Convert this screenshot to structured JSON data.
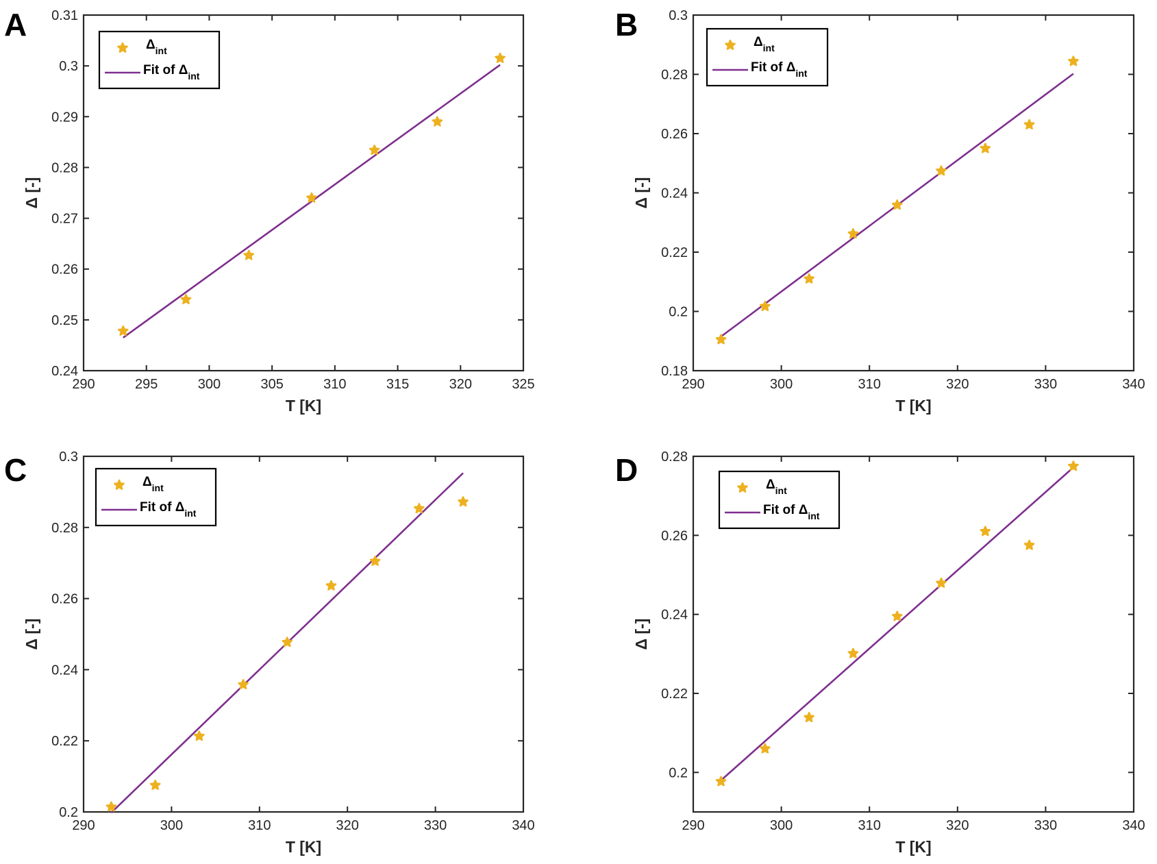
{
  "chart_data": [
    {
      "panel": "A",
      "type": "scatter",
      "xlabel": "T  [K]",
      "ylabel": "Δ [-]",
      "xlim": [
        290,
        325
      ],
      "ylim": [
        0.24,
        0.31
      ],
      "xticks": [
        290,
        295,
        300,
        305,
        310,
        315,
        320,
        325
      ],
      "yticks": [
        0.24,
        0.25,
        0.26,
        0.27,
        0.28,
        0.29,
        0.3,
        0.31
      ],
      "xtick_labels": [
        "290",
        "295",
        "300",
        "305",
        "310",
        "315",
        "320",
        "325"
      ],
      "ytick_labels": [
        "0.24",
        "0.25",
        "0.26",
        "0.27",
        "0.28",
        "0.29",
        "0.3",
        "0.31"
      ],
      "legend_position": "top-left",
      "series": [
        {
          "name": "Δint",
          "kind": "scatter",
          "color": "#EDB120",
          "x": [
            293.15,
            298.15,
            303.15,
            308.15,
            313.15,
            318.15,
            323.15
          ],
          "y": [
            0.2478,
            0.254,
            0.2627,
            0.274,
            0.2834,
            0.289,
            0.3015
          ]
        },
        {
          "name": "Fit of Δint",
          "kind": "line",
          "color": "#7E2F8E",
          "x": [
            293.15,
            323.15
          ],
          "y": [
            0.2465,
            0.3002
          ]
        }
      ]
    },
    {
      "panel": "B",
      "type": "scatter",
      "xlabel": "T  [K]",
      "ylabel": "Δ [-]",
      "xlim": [
        290,
        340
      ],
      "ylim": [
        0.18,
        0.3
      ],
      "xticks": [
        290,
        300,
        310,
        320,
        330,
        340
      ],
      "yticks": [
        0.18,
        0.2,
        0.22,
        0.24,
        0.26,
        0.28,
        0.3
      ],
      "xtick_labels": [
        "290",
        "300",
        "310",
        "320",
        "330",
        "340"
      ],
      "ytick_labels": [
        "0.18",
        "0.2",
        "0.22",
        "0.24",
        "0.26",
        "0.28",
        "0.3"
      ],
      "legend_position": "top-left",
      "series": [
        {
          "name": "Δint",
          "kind": "scatter",
          "color": "#EDB120",
          "x": [
            293.15,
            298.15,
            303.15,
            308.15,
            313.15,
            318.15,
            323.15,
            328.15,
            333.15
          ],
          "y": [
            0.1905,
            0.2017,
            0.211,
            0.2262,
            0.2359,
            0.2474,
            0.255,
            0.263,
            0.2844
          ]
        },
        {
          "name": "Fit of Δint",
          "kind": "line",
          "color": "#7E2F8E",
          "x": [
            293.15,
            333.15
          ],
          "y": [
            0.1915,
            0.2802
          ]
        }
      ]
    },
    {
      "panel": "C",
      "type": "scatter",
      "xlabel": "T  [K]",
      "ylabel": "Δ [-]",
      "xlim": [
        290,
        340
      ],
      "ylim": [
        0.2,
        0.3
      ],
      "xticks": [
        290,
        300,
        310,
        320,
        330,
        340
      ],
      "yticks": [
        0.2,
        0.22,
        0.24,
        0.26,
        0.28,
        0.3
      ],
      "xtick_labels": [
        "290",
        "300",
        "310",
        "320",
        "330",
        "340"
      ],
      "ytick_labels": [
        "0.2",
        "0.22",
        "0.24",
        "0.26",
        "0.28",
        "0.3"
      ],
      "legend_position": "top-left",
      "series": [
        {
          "name": "Δint",
          "kind": "scatter",
          "color": "#EDB120",
          "x": [
            293.15,
            298.15,
            303.15,
            308.15,
            313.15,
            318.15,
            323.15,
            328.15,
            333.15
          ],
          "y": [
            0.2014,
            0.2075,
            0.2213,
            0.2358,
            0.2477,
            0.2636,
            0.2705,
            0.2853,
            0.2872
          ]
        },
        {
          "name": "Fit of Δint",
          "kind": "line",
          "color": "#7E2F8E",
          "x": [
            293.15,
            333.15
          ],
          "y": [
            0.1998,
            0.2953
          ]
        }
      ]
    },
    {
      "panel": "D",
      "type": "scatter",
      "xlabel": "T  [K]",
      "ylabel": "Δ [-]",
      "xlim": [
        290,
        340
      ],
      "ylim": [
        0.19,
        0.28
      ],
      "xticks": [
        290,
        300,
        310,
        320,
        330,
        340
      ],
      "yticks": [
        0.2,
        0.22,
        0.24,
        0.26,
        0.28
      ],
      "xtick_labels": [
        "290",
        "300",
        "310",
        "320",
        "330",
        "340"
      ],
      "ytick_labels": [
        "0.2",
        "0.22",
        "0.24",
        "0.26",
        "0.28"
      ],
      "legend_position": "top-left",
      "series": [
        {
          "name": "Δint",
          "kind": "scatter",
          "color": "#EDB120",
          "x": [
            293.15,
            298.15,
            303.15,
            308.15,
            313.15,
            318.15,
            323.15,
            328.15,
            333.15
          ],
          "y": [
            0.1977,
            0.206,
            0.2139,
            0.2301,
            0.2395,
            0.2479,
            0.261,
            0.2575,
            0.2775
          ]
        },
        {
          "name": "Fit of Δint",
          "kind": "line",
          "color": "#7E2F8E",
          "x": [
            293.15,
            333.15
          ],
          "y": [
            0.198,
            0.2772
          ]
        }
      ]
    }
  ],
  "legend": {
    "scatter_label": "Δ",
    "scatter_label_sub": "int",
    "line_label": "Fit of Δ",
    "line_label_sub": "int"
  },
  "colors": {
    "scatter": "#EDB120",
    "fit": "#7E2F8E",
    "axis": "#262626",
    "background": "#ffffff"
  }
}
